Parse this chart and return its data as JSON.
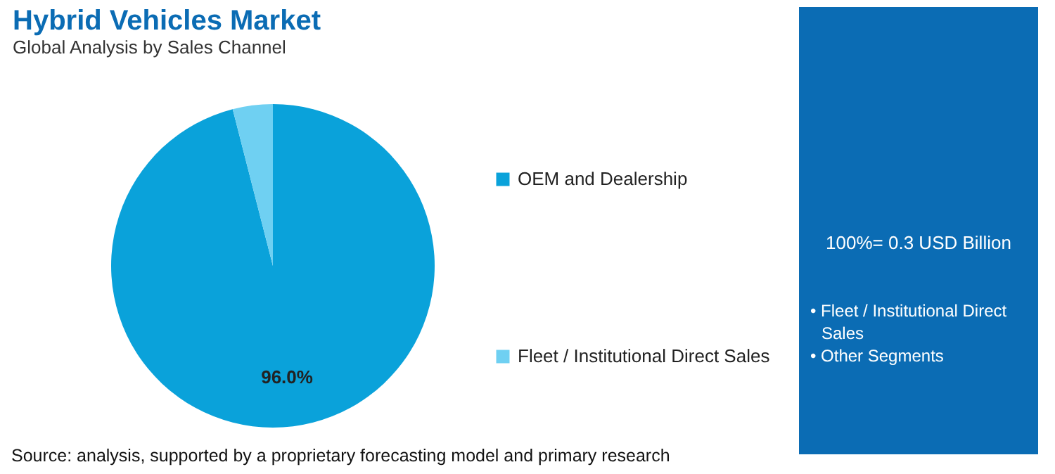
{
  "chart_data": {
    "type": "pie",
    "title": "Hybrid Vehicles Market",
    "subtitle": "Global Analysis by Sales Channel",
    "categories": [
      "OEM and Dealership",
      "Fleet / Institutional Direct Sales"
    ],
    "values": [
      96.0,
      4.0
    ],
    "colors": [
      "#0aa2da",
      "#6fd0f2"
    ],
    "value_labels": [
      "96.0%",
      null
    ],
    "legend": "right",
    "annotations": [
      "100%= 0.3 USD Billion",
      "• Fleet / Institutional Direct Sales",
      "• Other Segments",
      "Source: analysis, supported by a proprietary forecasting model and primary research"
    ]
  }
}
